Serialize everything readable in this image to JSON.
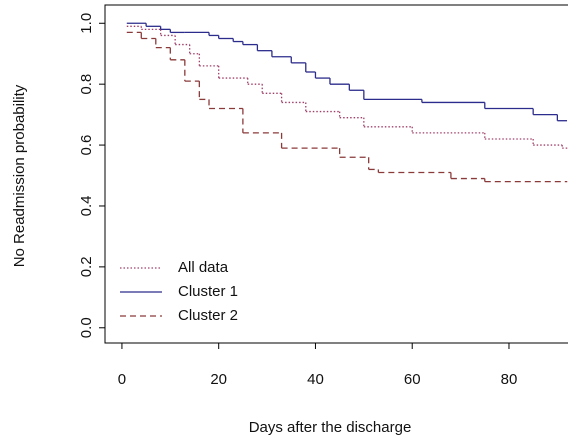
{
  "chart_data": {
    "type": "step",
    "xlabel": "Days after the discharge",
    "ylabel": "No Readmission probability",
    "xlim": [
      -3.5,
      92.2
    ],
    "ylim": [
      -0.05,
      1.06
    ],
    "xticks": [
      0,
      20,
      40,
      60,
      80
    ],
    "yticks": [
      {
        "value": 0,
        "label": "0.0"
      },
      {
        "value": 0.2,
        "label": "0.2"
      },
      {
        "value": 0.4,
        "label": "0.4"
      },
      {
        "value": 0.6,
        "label": "0.6"
      },
      {
        "value": 0.8,
        "label": "0.8"
      },
      {
        "value": 1,
        "label": "1.0"
      }
    ],
    "legend": "bottom-left",
    "series": [
      {
        "name": "All data",
        "color": "#a0406a",
        "dash": "dotted",
        "x": [
          1,
          4,
          8,
          11,
          14,
          16,
          20,
          26,
          29,
          33,
          38,
          45,
          50,
          60,
          75,
          85,
          91,
          92
        ],
        "values": [
          0.99,
          0.98,
          0.96,
          0.93,
          0.9,
          0.86,
          0.82,
          0.8,
          0.77,
          0.74,
          0.71,
          0.69,
          0.66,
          0.64,
          0.62,
          0.6,
          0.59,
          0.59
        ]
      },
      {
        "name": "Cluster 1",
        "color": "#2c2c8c",
        "dash": "solid",
        "x": [
          1,
          5,
          8,
          10,
          13,
          18,
          20,
          23,
          25,
          28,
          31,
          35,
          38,
          40,
          43,
          47,
          50,
          62,
          75,
          85,
          90,
          92
        ],
        "values": [
          1,
          0.99,
          0.98,
          0.97,
          0.97,
          0.96,
          0.95,
          0.94,
          0.93,
          0.91,
          0.89,
          0.87,
          0.84,
          0.82,
          0.8,
          0.78,
          0.75,
          0.74,
          0.72,
          0.7,
          0.68,
          0.68
        ]
      },
      {
        "name": "Cluster 2",
        "color": "#8b3a3a",
        "dash": "dashed",
        "x": [
          1,
          4,
          7,
          10,
          13,
          16,
          18,
          25,
          33,
          45,
          51,
          53,
          68,
          75,
          92
        ],
        "values": [
          0.97,
          0.95,
          0.92,
          0.88,
          0.81,
          0.75,
          0.72,
          0.64,
          0.59,
          0.56,
          0.52,
          0.51,
          0.49,
          0.48,
          0.48
        ]
      }
    ]
  }
}
